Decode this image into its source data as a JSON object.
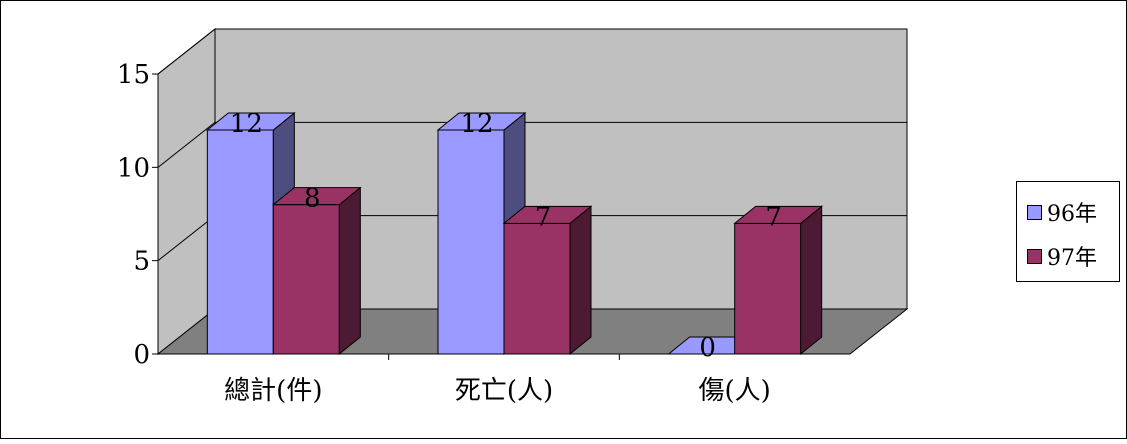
{
  "chart_data": {
    "type": "bar",
    "categories": [
      "總計(件)",
      "死亡(人)",
      "傷(人)"
    ],
    "series": [
      {
        "name": "96年",
        "values": [
          12,
          12,
          0
        ],
        "color": "#9999ff"
      },
      {
        "name": "97年",
        "values": [
          8,
          7,
          7
        ],
        "color": "#993366"
      }
    ],
    "ylim": [
      0,
      15
    ],
    "y_ticks": [
      "0",
      "5",
      "10",
      "15"
    ],
    "grid": true,
    "legend_position": "right",
    "data_labels": true,
    "style": "3d-clustered-column"
  }
}
